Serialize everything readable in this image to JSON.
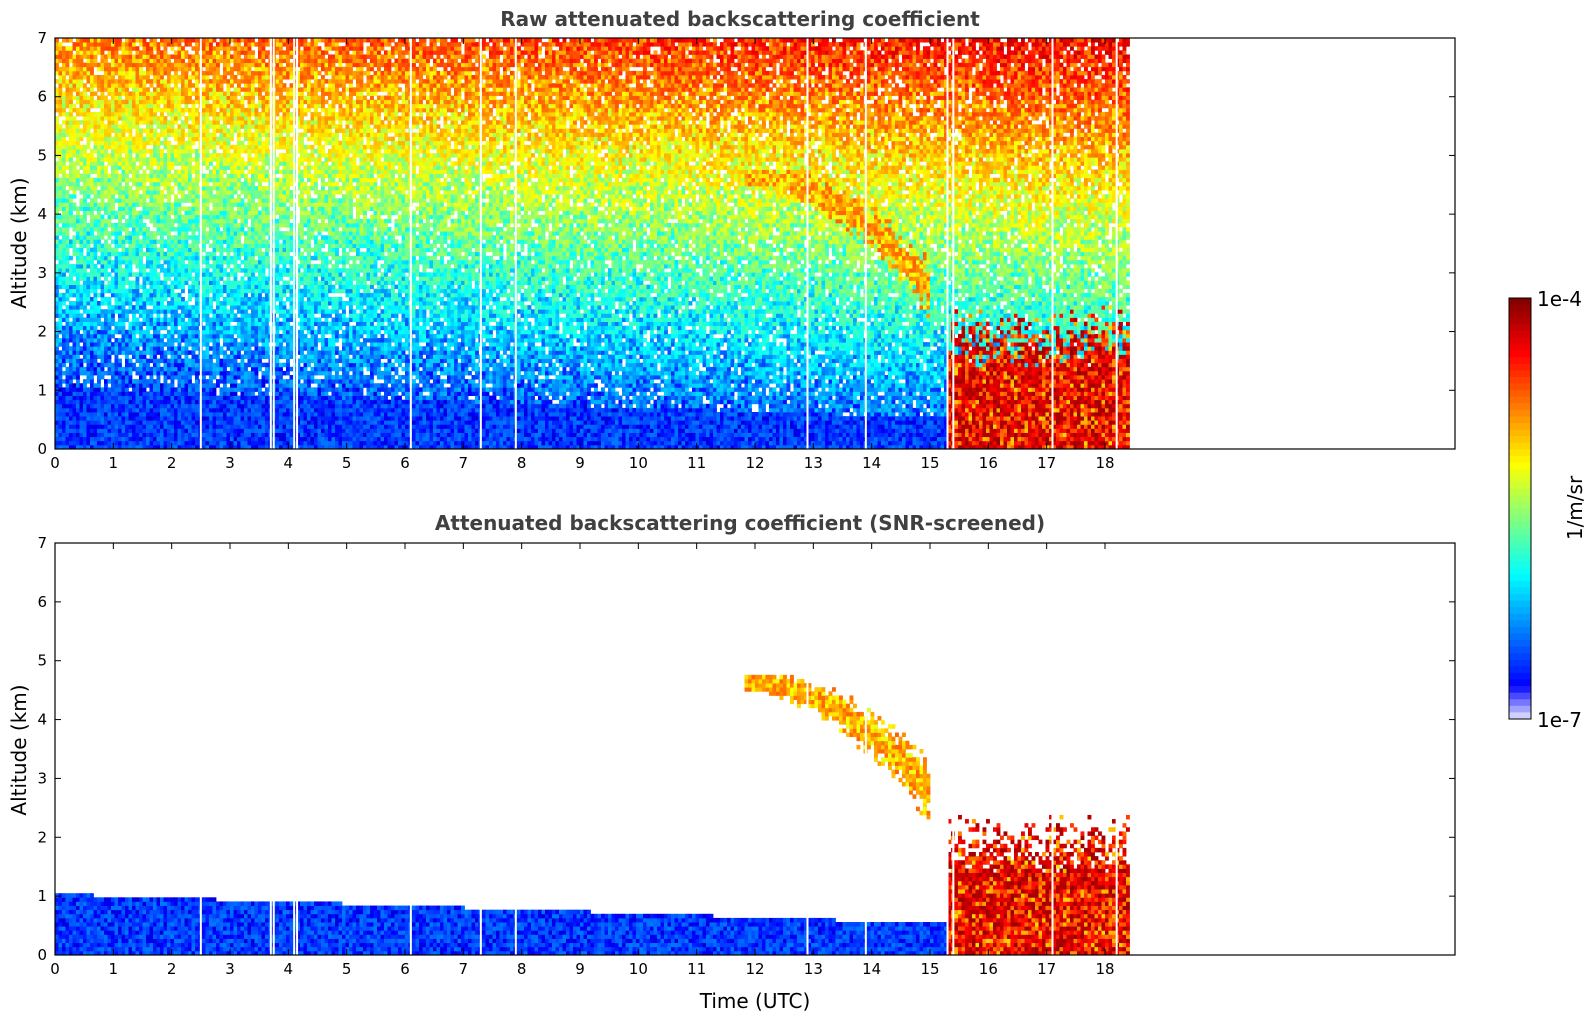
{
  "chart_data": [
    {
      "type": "heatmap",
      "title": "Raw attenuated backscattering coefficient",
      "xlabel": "",
      "ylabel": "Altitude (km)",
      "xlim": [
        0,
        24
      ],
      "ylim": [
        0,
        7
      ],
      "x_ticks": [
        "0",
        "1",
        "2",
        "3",
        "4",
        "5",
        "6",
        "7",
        "8",
        "9",
        "10",
        "11",
        "12",
        "13",
        "14",
        "15",
        "16",
        "17",
        "18"
      ],
      "y_ticks": [
        "0",
        "1",
        "2",
        "3",
        "4",
        "5",
        "6",
        "7"
      ],
      "data_extent_time": [
        0,
        18.4
      ],
      "grid": false,
      "missing_profiles_utc": [
        2.5,
        3.7,
        3.75,
        4.1,
        4.15,
        6.1,
        7.3,
        7.9,
        12.9,
        13.9,
        15.3,
        15.4,
        17.1,
        18.2
      ],
      "features": [
        {
          "kind": "boundary_layer_aerosol",
          "time": [
            0,
            15.2
          ],
          "altitude_top_km": [
            1.0,
            0.5
          ],
          "value": 3e-07
        },
        {
          "kind": "cloud_layer",
          "time": [
            11.8,
            15.0
          ],
          "altitude_km": [
            4.6,
            2.7
          ],
          "value": 1e-05
        },
        {
          "kind": "low_cloud",
          "time": [
            15.3,
            18.4
          ],
          "altitude_km": [
            0,
            2.4
          ],
          "value": 3e-05
        }
      ]
    },
    {
      "type": "heatmap",
      "title": "Attenuated backscattering coefficient (SNR-screened)",
      "xlabel": "Time (UTC)",
      "ylabel": "Altitude (km)",
      "xlim": [
        0,
        24
      ],
      "ylim": [
        0,
        7
      ],
      "x_ticks": [
        "0",
        "1",
        "2",
        "3",
        "4",
        "5",
        "6",
        "7",
        "8",
        "9",
        "10",
        "11",
        "12",
        "13",
        "14",
        "15",
        "16",
        "17",
        "18"
      ],
      "y_ticks": [
        "0",
        "1",
        "2",
        "3",
        "4",
        "5",
        "6",
        "7"
      ],
      "data_extent_time": [
        0,
        18.4
      ],
      "grid": false,
      "features": [
        {
          "kind": "boundary_layer_aerosol",
          "time": [
            0,
            15.2
          ],
          "altitude_top_km": [
            1.0,
            0.5
          ],
          "value": 3e-07
        },
        {
          "kind": "cloud_layer",
          "time": [
            11.8,
            15.0
          ],
          "altitude_km": [
            4.6,
            2.7
          ],
          "value": 1e-05
        },
        {
          "kind": "low_cloud",
          "time": [
            15.3,
            18.4
          ],
          "altitude_km": [
            0,
            2.4
          ],
          "value": 3e-05
        }
      ]
    }
  ],
  "colorbar": {
    "label": "1/m/sr",
    "min_label": "1e-7",
    "max_label": "1e-4",
    "scale": "log",
    "colormap": "jet"
  }
}
